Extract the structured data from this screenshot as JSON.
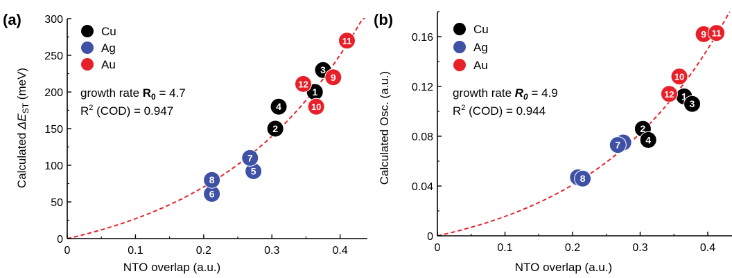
{
  "colors": {
    "Cu": "#000000",
    "Ag": "#3f51a5",
    "Au": "#e8202a",
    "fit": "#e8202a",
    "label_text": "#ffffff"
  },
  "chart_data": [
    {
      "panel_label": "(a)",
      "type": "scatter",
      "xlabel": "NTO overlap (a.u.)",
      "ylabel_main": "Calculated ",
      "ylabel_symbol": "ΔE",
      "ylabel_sub": "ST",
      "ylabel_unit": " (meV)",
      "xlim": [
        0,
        0.44
      ],
      "ylim": [
        0,
        300
      ],
      "xticks": [
        0,
        0.1,
        0.2,
        0.3,
        0.4
      ],
      "xtick_labels": [
        "0",
        "0.1",
        "0.2",
        "0.3",
        "0.4"
      ],
      "yticks": [
        0,
        50,
        100,
        150,
        200,
        250,
        300
      ],
      "ytick_labels": [
        "0",
        "50",
        "100",
        "150",
        "200",
        "250",
        "300"
      ],
      "legend": [
        {
          "name": "Cu",
          "color_key": "Cu"
        },
        {
          "name": "Ag",
          "color_key": "Ag"
        },
        {
          "name": "Au",
          "color_key": "Au"
        }
      ],
      "annotation_rate_prefix": "growth rate ",
      "annotation_rate_symbol": "R",
      "annotation_rate_sub": "0",
      "annotation_rate_value": " = 4.7",
      "annotation_r2_prefix": "R",
      "annotation_r2_sup": "2",
      "annotation_r2_text": " (COD) = 0.947",
      "fit": {
        "growth_rate": 4.7,
        "R2": 0.947
      },
      "points": [
        {
          "label": "1",
          "metal": "Cu",
          "x": 0.363,
          "y": 200
        },
        {
          "label": "2",
          "metal": "Cu",
          "x": 0.305,
          "y": 150
        },
        {
          "label": "3",
          "metal": "Cu",
          "x": 0.375,
          "y": 230
        },
        {
          "label": "4",
          "metal": "Cu",
          "x": 0.31,
          "y": 180
        },
        {
          "label": "5",
          "metal": "Ag",
          "x": 0.273,
          "y": 92
        },
        {
          "label": "6",
          "metal": "Ag",
          "x": 0.212,
          "y": 61
        },
        {
          "label": "7",
          "metal": "Ag",
          "x": 0.268,
          "y": 110
        },
        {
          "label": "8",
          "metal": "Ag",
          "x": 0.212,
          "y": 80
        },
        {
          "label": "9",
          "metal": "Au",
          "x": 0.39,
          "y": 220
        },
        {
          "label": "10",
          "metal": "Au",
          "x": 0.365,
          "y": 180
        },
        {
          "label": "11",
          "metal": "Au",
          "x": 0.41,
          "y": 270
        },
        {
          "label": "12",
          "metal": "Au",
          "x": 0.346,
          "y": 211
        }
      ]
    },
    {
      "panel_label": "(b)",
      "type": "scatter",
      "xlabel": "NTO overlap (a.u.)",
      "ylabel_main": "Calculated Osc. (a.u.)",
      "xlim": [
        0,
        0.44
      ],
      "ylim": [
        0,
        0.18
      ],
      "xticks": [
        0,
        0.1,
        0.2,
        0.3,
        0.4
      ],
      "xtick_labels": [
        "0",
        "0.1",
        "0.2",
        "0.3",
        "0.4"
      ],
      "yticks": [
        0,
        0.04,
        0.08,
        0.12,
        0.16
      ],
      "ytick_labels": [
        "0",
        "0.04",
        "0.08",
        "0.12",
        "0.16"
      ],
      "legend": [
        {
          "name": "Cu",
          "color_key": "Cu"
        },
        {
          "name": "Ag",
          "color_key": "Ag"
        },
        {
          "name": "Au",
          "color_key": "Au"
        }
      ],
      "annotation_rate_prefix": "growth rate ",
      "annotation_rate_symbol": "R",
      "annotation_rate_sub": "0",
      "annotation_rate_value": " = 4.9",
      "annotation_r2_prefix": "R",
      "annotation_r2_sup": "2",
      "annotation_r2_text": " (COD) = 0.944",
      "fit": {
        "growth_rate": 4.9,
        "R2": 0.944
      },
      "points": [
        {
          "label": "1",
          "metal": "Cu",
          "x": 0.365,
          "y": 0.112
        },
        {
          "label": "2",
          "metal": "Cu",
          "x": 0.304,
          "y": 0.086
        },
        {
          "label": "3",
          "metal": "Cu",
          "x": 0.377,
          "y": 0.106
        },
        {
          "label": "4",
          "metal": "Cu",
          "x": 0.312,
          "y": 0.077
        },
        {
          "label": "5",
          "metal": "Ag",
          "x": 0.275,
          "y": 0.075
        },
        {
          "label": "6",
          "metal": "Ag",
          "x": 0.208,
          "y": 0.047
        },
        {
          "label": "7",
          "metal": "Ag",
          "x": 0.267,
          "y": 0.073
        },
        {
          "label": "8",
          "metal": "Ag",
          "x": 0.215,
          "y": 0.046
        },
        {
          "label": "9",
          "metal": "Au",
          "x": 0.394,
          "y": 0.162
        },
        {
          "label": "10",
          "metal": "Au",
          "x": 0.358,
          "y": 0.128
        },
        {
          "label": "11",
          "metal": "Au",
          "x": 0.413,
          "y": 0.163
        },
        {
          "label": "12",
          "metal": "Au",
          "x": 0.343,
          "y": 0.114
        }
      ]
    }
  ]
}
